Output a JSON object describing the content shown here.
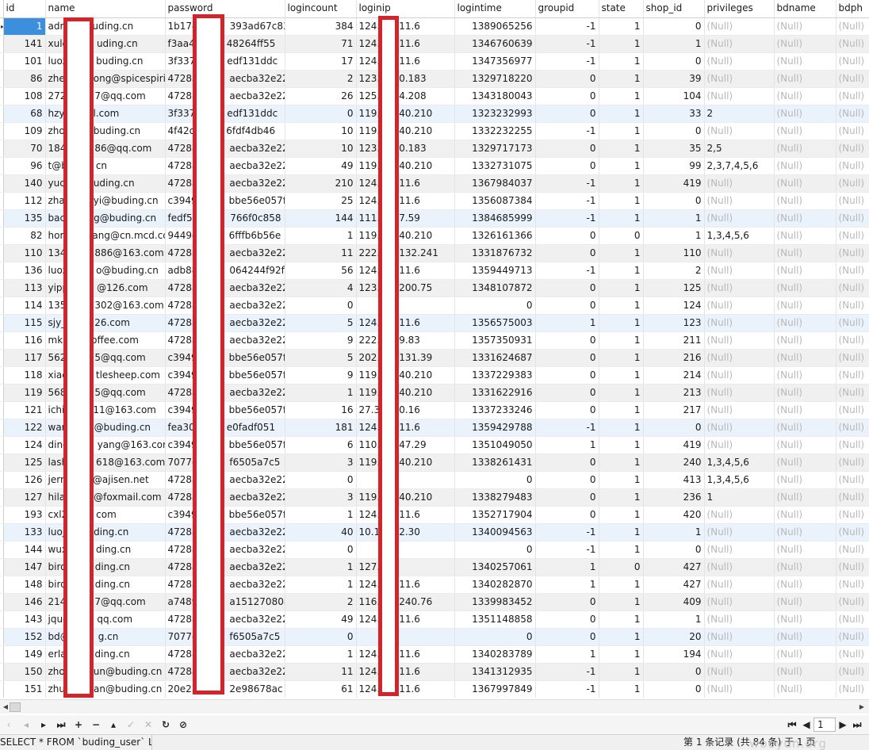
{
  "columns": [
    "id",
    "name",
    "password",
    "logincount",
    "loginip",
    "logintime",
    "groupid",
    "state",
    "shop_id",
    "privileges",
    "bdname",
    "bdph"
  ],
  "null_label": "(Null)",
  "rows": [
    [
      "1",
      "adr",
      "uding.cn",
      "1b174",
      "393ad67c83",
      "384",
      "124.",
      "11.6",
      "1389065256",
      "-1",
      "1",
      "0"
    ],
    [
      "141",
      "xule",
      "uding.cn",
      "f3aa4",
      "48264ff55",
      "71",
      "124.",
      "11.6",
      "1346760639",
      "-1",
      "1",
      "1"
    ],
    [
      "101",
      "luoz",
      "buding.cn",
      "3f337",
      "edf131ddc",
      "17",
      "124.",
      "11.6",
      "1347356977",
      "-1",
      "1",
      "0"
    ],
    [
      "86",
      "zhe",
      "ong@spicespiri",
      "4728a",
      "aecba32e22",
      "2",
      "123.",
      "0.183",
      "1329718220",
      "0",
      "1",
      "39"
    ],
    [
      "108",
      "272",
      "7@qq.com",
      "4728a",
      "aecba32e22",
      "26",
      "125.",
      "4.208",
      "1343180043",
      "0",
      "1",
      "104"
    ],
    [
      "68",
      "hzy",
      "l.com",
      "3f337",
      "edf131ddc",
      "0",
      "119.",
      "40.210",
      "1323232993",
      "0",
      "1",
      "33",
      "2"
    ],
    [
      "109",
      "zho",
      "buding.cn",
      "4f42c",
      "6fdf4db46",
      "10",
      "119.",
      "40.210",
      "1332232255",
      "-1",
      "1",
      "0"
    ],
    [
      "70",
      "184",
      "86@qq.com",
      "4728a",
      "aecba32e22",
      "10",
      "123.",
      "0.183",
      "1329717173",
      "0",
      "1",
      "35",
      "2,5"
    ],
    [
      "96",
      "t@b",
      "cn",
      "4728a",
      "aecba32e22",
      "49",
      "119.",
      "40.210",
      "1332731075",
      "0",
      "1",
      "99",
      "2,3,7,4,5,6"
    ],
    [
      "140",
      "yuc",
      "uding.cn",
      "4728a",
      "aecba32e22",
      "210",
      "124.",
      "11.6",
      "1367984037",
      "-1",
      "1",
      "419"
    ],
    [
      "112",
      "zha",
      "yi@buding.cn",
      "c3949",
      "bbe56e057f",
      "25",
      "124.",
      "11.6",
      "1356087384",
      "-1",
      "1",
      "0"
    ],
    [
      "135",
      "bac",
      "g@buding.cn",
      "fedf59",
      "766f0c858",
      "144",
      "111.",
      "7.59",
      "1384685999",
      "-1",
      "1",
      "1"
    ],
    [
      "82",
      "hor",
      "ang@cn.mcd.cc",
      "9449c",
      "6fffb6b56e",
      "1",
      "119.",
      "40.210",
      "1326161366",
      "0",
      "0",
      "1",
      "1,3,4,5,6"
    ],
    [
      "110",
      "134",
      "886@163.com",
      "4728a",
      "aecba32e22",
      "11",
      "222.",
      "132.241",
      "1331876732",
      "0",
      "1",
      "110"
    ],
    [
      "136",
      "luoz",
      "o@buding.cn",
      "adb88",
      "064244f92f",
      "56",
      "124.",
      "11.6",
      "1359449713",
      "-1",
      "1",
      "2"
    ],
    [
      "113",
      "yipp",
      "@126.com",
      "4728a",
      "aecba32e22",
      "4",
      "123.",
      "200.75",
      "1348107872",
      "0",
      "1",
      "125"
    ],
    [
      "114",
      "135",
      "302@163.com",
      "4728a",
      "aecba32e22",
      "0",
      "",
      "",
      "0",
      "0",
      "1",
      "124"
    ],
    [
      "115",
      "sjy_",
      "26.com",
      "4728a",
      "aecba32e22",
      "5",
      "124.",
      "11.6",
      "1356575003",
      "1",
      "1",
      "123"
    ],
    [
      "116",
      "mk",
      "offee.com",
      "4728a",
      "aecba32e22",
      "9",
      "222.",
      "9.83",
      "1357350931",
      "0",
      "1",
      "211"
    ],
    [
      "117",
      "562",
      "5@qq.com",
      "c3949",
      "bbe56e057f",
      "5",
      "202.",
      "131.39",
      "1331624687",
      "0",
      "1",
      "216"
    ],
    [
      "118",
      "xiac",
      "tlesheep.com",
      "c3949",
      "bbe56e057f",
      "9",
      "119.",
      "40.210",
      "1337229383",
      "0",
      "1",
      "214"
    ],
    [
      "119",
      "568",
      "5@qq.com",
      "4728a",
      "aecba32e22",
      "1",
      "119.",
      "40.210",
      "1331622916",
      "0",
      "1",
      "213"
    ],
    [
      "121",
      "ichi",
      "11@163.com",
      "c3949",
      "bbe56e057f",
      "16",
      "27.3",
      "0.16",
      "1337233246",
      "0",
      "1",
      "217"
    ],
    [
      "122",
      "war",
      "@buding.cn",
      "fea30",
      "e0fadf051",
      "181",
      "124.",
      "11.6",
      "1359429788",
      "-1",
      "1",
      "0"
    ],
    [
      "124",
      "ding",
      "yang@163.com",
      "c3949",
      "bbe56e057f",
      "6",
      "110.",
      "47.29",
      "1351049050",
      "1",
      "1",
      "419"
    ],
    [
      "125",
      "lash",
      "618@163.com",
      "7077e",
      "f6505a7c5",
      "3",
      "119.",
      "40.210",
      "1338261431",
      "0",
      "1",
      "240",
      "1,3,4,5,6"
    ],
    [
      "126",
      "jerr",
      "@ajisen.net",
      "4728a",
      "aecba32e22",
      "0",
      "",
      "",
      "0",
      "0",
      "1",
      "413",
      "1,3,4,5,6"
    ],
    [
      "127",
      "hila",
      "@foxmail.com",
      "4728a",
      "aecba32e22",
      "3",
      "119.",
      "40.210",
      "1338279483",
      "0",
      "1",
      "236",
      "1"
    ],
    [
      "193",
      "cxl2",
      "com",
      "c3949",
      "bbe56e057f",
      "1",
      "124.",
      "11.6",
      "1352717904",
      "0",
      "1",
      "420"
    ],
    [
      "133",
      "luoj",
      "ding.cn",
      "4728a",
      "aecba32e22",
      "40",
      "10.1",
      "2.30",
      "1340094563",
      "-1",
      "1",
      "1"
    ],
    [
      "144",
      "wux",
      "ding.cn",
      "4728a",
      "aecba32e22",
      "0",
      "",
      "",
      "0",
      "-1",
      "1",
      "0"
    ],
    [
      "147",
      "bird",
      "ding.cn",
      "4728a",
      "aecba32e22",
      "1",
      "127.",
      "",
      "1340257061",
      "1",
      "0",
      "427"
    ],
    [
      "148",
      "bird",
      "ding.cn",
      "4728a",
      "aecba32e22",
      "1",
      "124.",
      "11.6",
      "1340282870",
      "1",
      "1",
      "427"
    ],
    [
      "146",
      "214",
      "7@qq.com",
      "a7489",
      "a151270808",
      "2",
      "116.",
      "240.76",
      "1339983452",
      "0",
      "1",
      "409"
    ],
    [
      "143",
      "jquo",
      "qq.com",
      "4728a",
      "aecba32e22",
      "49",
      "124.",
      "11.6",
      "1351148858",
      "0",
      "1",
      "1"
    ],
    [
      "152",
      "bd@",
      "g.cn",
      "7077e",
      "f6505a7c5",
      "0",
      "",
      "",
      "0",
      "0",
      "1",
      "20"
    ],
    [
      "149",
      "erla",
      "ding.cn",
      "4728a",
      "aecba32e22",
      "1",
      "124.",
      "11.6",
      "1340283789",
      "1",
      "1",
      "194"
    ],
    [
      "150",
      "zho",
      "un@buding.cn",
      "4728a",
      "aecba32e22",
      "11",
      "124.",
      "11.6",
      "1341312935",
      "-1",
      "1",
      "0"
    ],
    [
      "151",
      "zhu",
      "an@buding.cn",
      "20e23",
      "2e98678ac",
      "61",
      "124.",
      "11.6",
      "1367997849",
      "-1",
      "1",
      "0"
    ]
  ],
  "status": {
    "sql": "SELECT * FROM `buding_user` LIN",
    "records": "第 1 条记录 (共 84 条) 于 1 页",
    "watermark": "wooyun.org"
  },
  "nav": {
    "page": "1"
  }
}
